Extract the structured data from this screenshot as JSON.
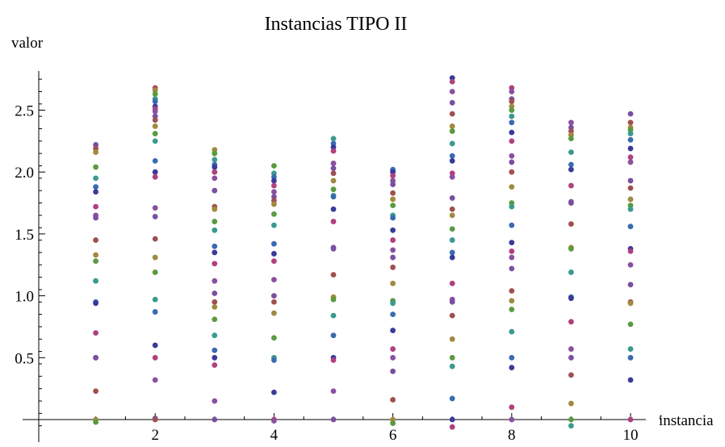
{
  "chart_data": {
    "type": "scatter",
    "title": "Instancias TIPO II",
    "xlabel": "instancia",
    "ylabel": "valor",
    "x_ticks": [
      2,
      4,
      6,
      8,
      10
    ],
    "x_tick_labels": [
      "2",
      "4",
      "6",
      "8",
      "10"
    ],
    "y_ticks": [
      0.5,
      1.0,
      1.5,
      2.0,
      2.5
    ],
    "y_tick_labels": [
      "0.5",
      "1.0",
      "1.5",
      "2.0",
      "2.5"
    ],
    "xlim": [
      0.3,
      10.8
    ],
    "ylim": [
      -0.08,
      2.84
    ],
    "grid": false,
    "colors": [
      "#7a4fa0",
      "#a0504f",
      "#a08a40",
      "#5a9a40",
      "#3a9a8f",
      "#3a6ab0",
      "#3a3a9a",
      "#b0407f",
      "#8a50a0"
    ],
    "x": [
      1,
      2,
      3,
      4,
      5,
      6,
      7,
      8,
      9,
      10
    ],
    "columns": [
      [
        2.22,
        2.19,
        2.16,
        2.04,
        1.95,
        1.88,
        1.84,
        1.72,
        1.65,
        1.63,
        1.45,
        1.33,
        1.28,
        1.12,
        0.95,
        0.94,
        0.7,
        0.5,
        0.5,
        0.23,
        0.0,
        -0.02
      ],
      [
        2.68,
        2.66,
        2.63,
        2.59,
        2.57,
        2.53,
        2.51,
        2.49,
        2.45,
        2.42,
        2.37,
        2.31,
        2.25,
        2.09,
        2.0,
        1.96,
        1.71,
        1.64,
        1.46,
        1.31,
        1.19,
        0.97,
        0.87,
        0.6,
        0.5,
        0.32,
        0.01,
        0.0
      ],
      [
        2.18,
        2.15,
        2.1,
        2.06,
        2.04,
        2.0,
        1.95,
        1.85,
        1.72,
        1.7,
        1.6,
        1.53,
        1.4,
        1.35,
        1.26,
        1.12,
        1.02,
        0.95,
        0.91,
        0.81,
        0.68,
        0.56,
        0.5,
        0.44,
        0.15,
        0.0
      ],
      [
        2.05,
        1.99,
        1.96,
        1.93,
        1.89,
        1.84,
        1.8,
        1.77,
        1.74,
        1.66,
        1.57,
        1.42,
        1.34,
        1.28,
        1.13,
        1.0,
        0.95,
        0.86,
        0.66,
        0.5,
        0.48,
        0.22,
        0.0,
        -0.01
      ],
      [
        2.27,
        2.23,
        2.2,
        2.17,
        2.07,
        2.03,
        1.99,
        1.93,
        1.86,
        1.81,
        1.8,
        1.7,
        1.6,
        1.39,
        1.38,
        1.17,
        0.99,
        0.97,
        0.84,
        0.68,
        0.5,
        0.48,
        0.23,
        0.0
      ],
      [
        2.02,
        2.0,
        1.97,
        1.93,
        1.9,
        1.83,
        1.78,
        1.73,
        1.65,
        1.63,
        1.53,
        1.45,
        1.37,
        1.31,
        1.23,
        1.1,
        0.96,
        0.94,
        0.85,
        0.72,
        0.57,
        0.5,
        0.39,
        0.16,
        0.0,
        -0.03
      ],
      [
        2.76,
        2.73,
        2.65,
        2.56,
        2.47,
        2.37,
        2.33,
        2.23,
        2.13,
        2.09,
        1.99,
        1.96,
        1.79,
        1.7,
        1.65,
        1.54,
        1.45,
        1.35,
        1.31,
        1.1,
        0.97,
        0.95,
        0.84,
        0.65,
        0.5,
        0.43,
        0.17,
        0.0,
        -0.06
      ],
      [
        2.68,
        2.65,
        2.59,
        2.57,
        2.53,
        2.5,
        2.45,
        2.4,
        2.32,
        2.25,
        2.13,
        2.08,
        2.0,
        1.88,
        1.75,
        1.72,
        1.57,
        1.43,
        1.36,
        1.31,
        1.22,
        1.04,
        0.96,
        0.89,
        0.71,
        0.5,
        0.42,
        0.1,
        0.0
      ],
      [
        2.4,
        2.36,
        2.33,
        2.3,
        2.27,
        2.16,
        2.06,
        2.02,
        1.89,
        1.76,
        1.75,
        1.58,
        1.39,
        1.38,
        1.19,
        0.99,
        0.98,
        0.79,
        0.57,
        0.5,
        0.36,
        0.13,
        0.0,
        -0.05
      ],
      [
        2.47,
        2.4,
        2.36,
        2.34,
        2.31,
        2.26,
        2.19,
        2.12,
        2.08,
        1.93,
        1.87,
        1.78,
        1.73,
        1.7,
        1.56,
        1.38,
        1.36,
        1.25,
        1.09,
        0.95,
        0.94,
        0.77,
        0.57,
        0.5,
        0.32,
        0.0
      ]
    ]
  }
}
